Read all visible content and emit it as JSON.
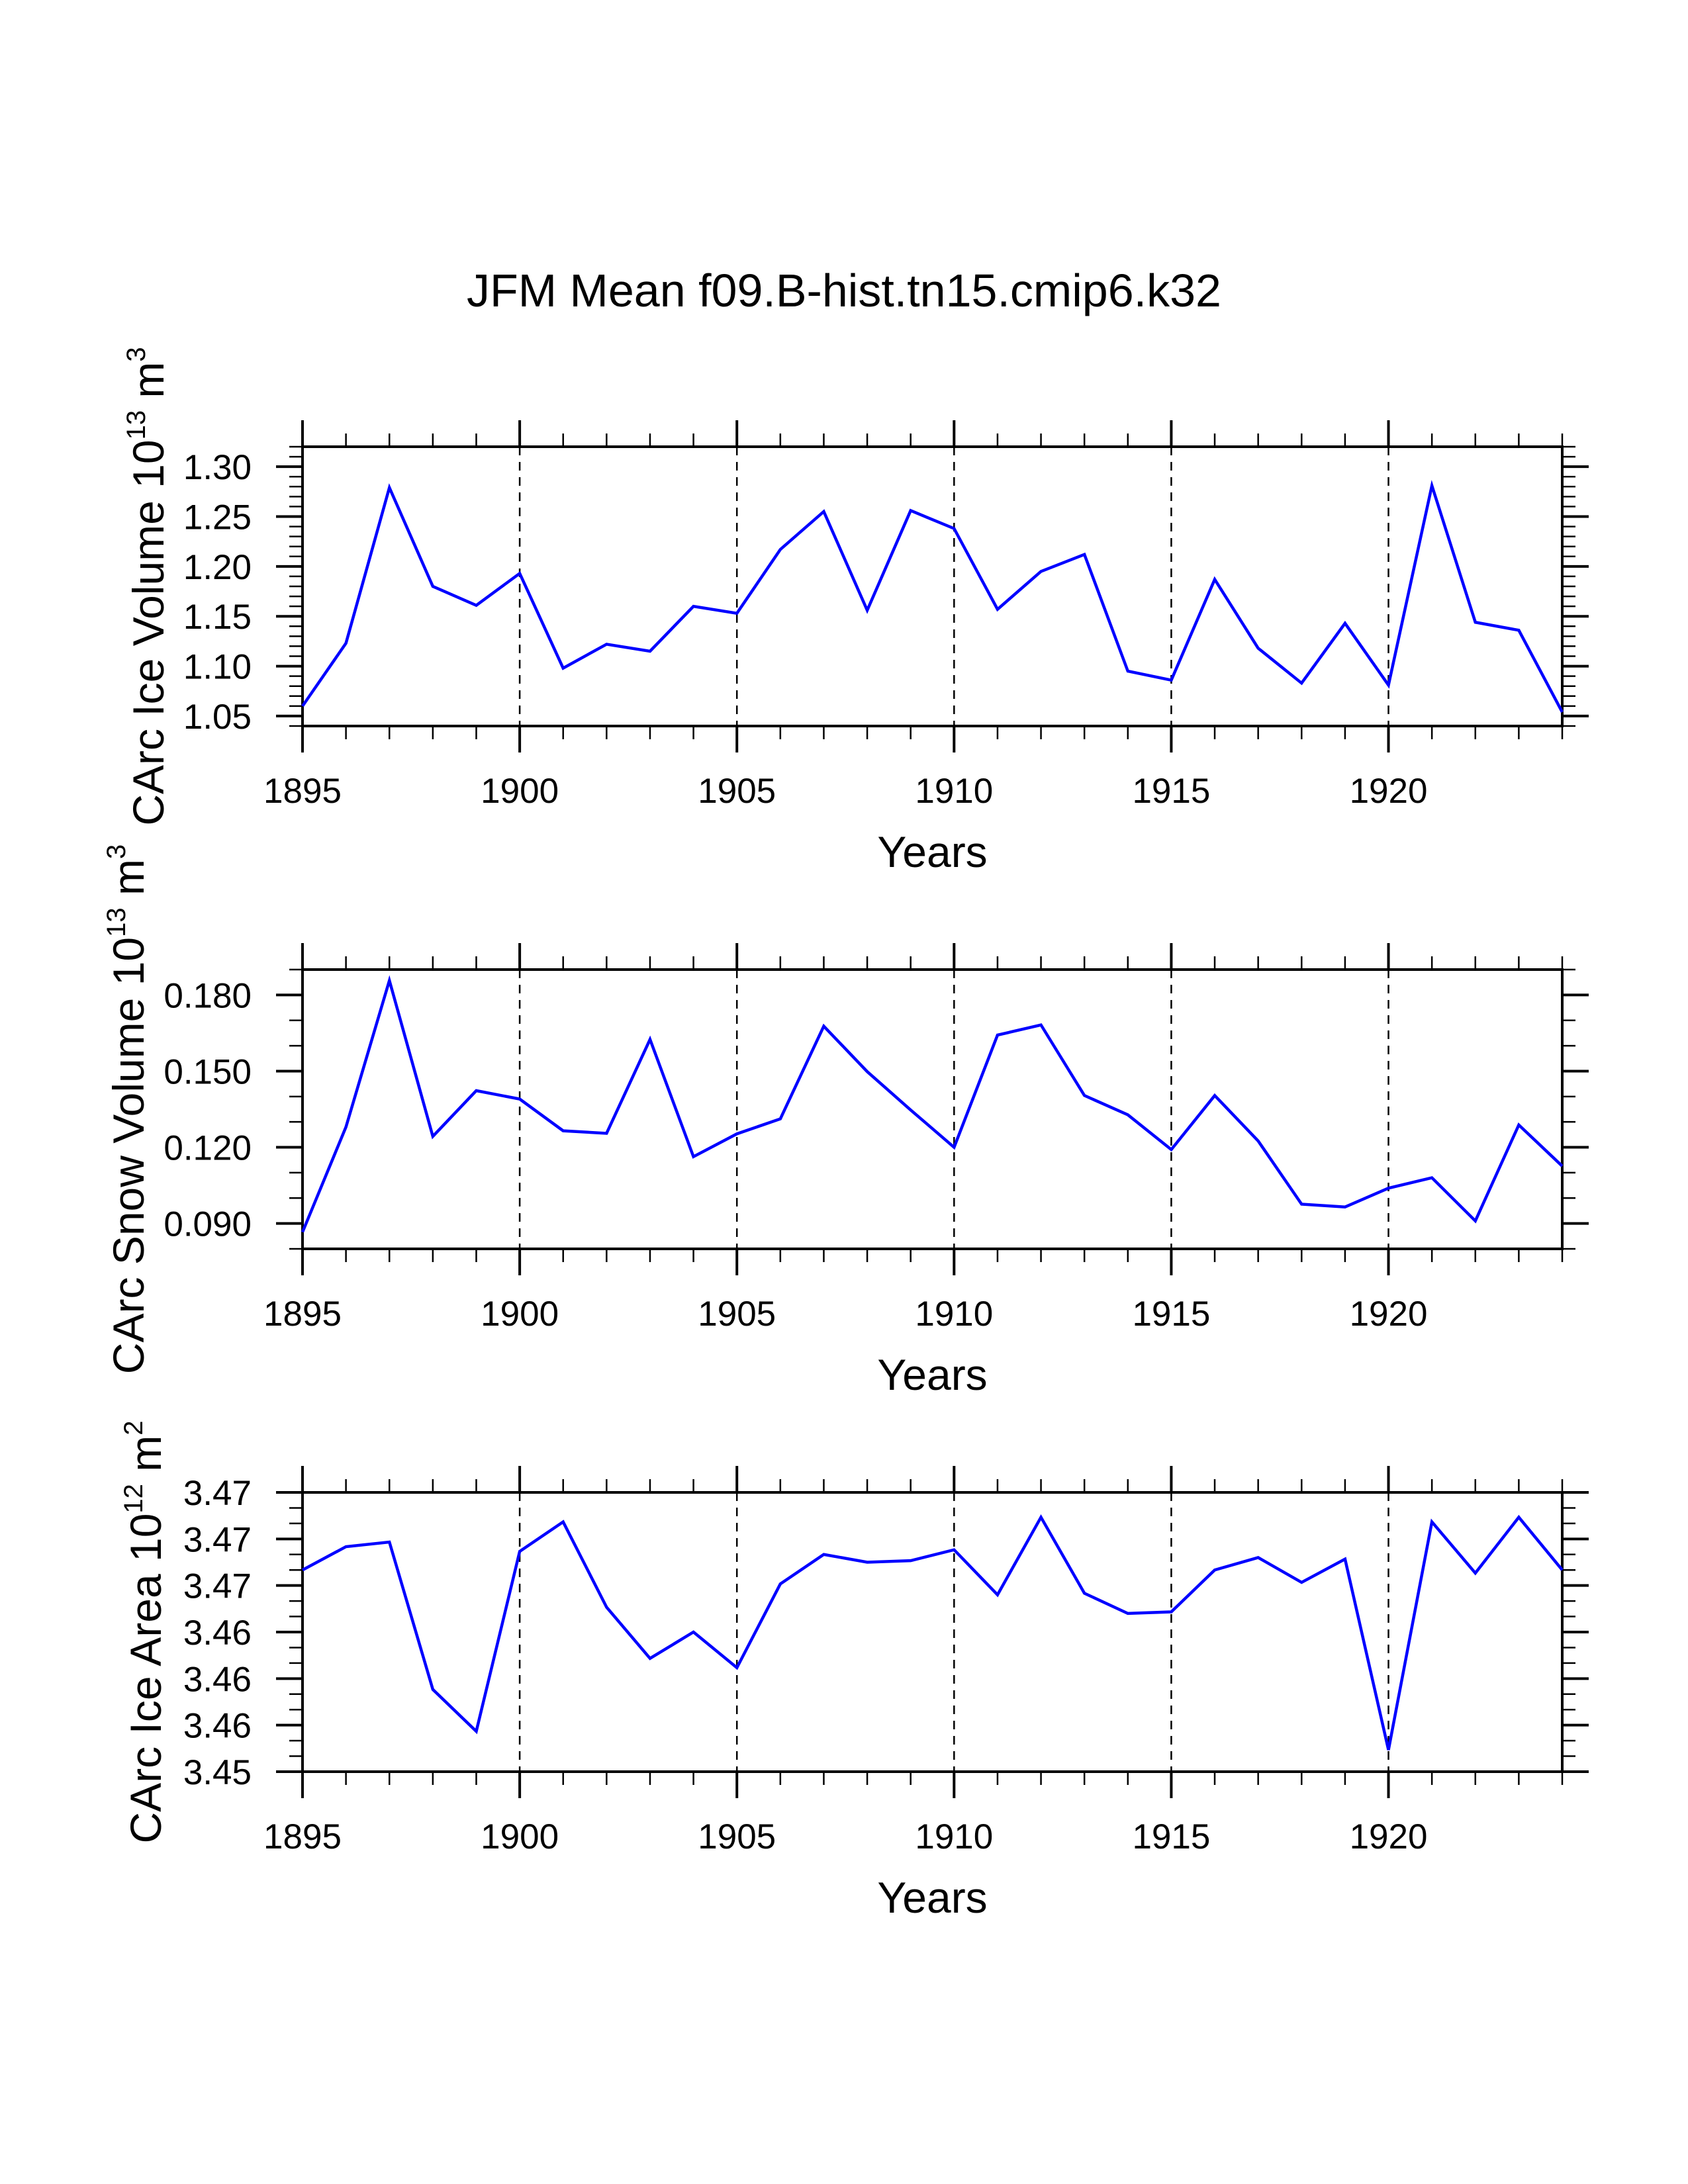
{
  "figure": {
    "title": "JFM Mean f09.B-hist.tn15.cmip6.k32"
  },
  "colors": {
    "line": "#0000FF",
    "axes": "#000000",
    "grid": "#000000",
    "background": "#FFFFFF"
  },
  "chart_data": [
    {
      "type": "line",
      "title": "",
      "xlabel": "Years",
      "ylabel": "CArc Ice Volume 10^13 m^3",
      "ylabel_parts": {
        "text": "CArc Ice Volume 10",
        "exp": "13",
        "unit": " m",
        "unit_exp": "3"
      },
      "xlim": [
        1895,
        1924
      ],
      "ylim": [
        1.04,
        1.32
      ],
      "x_major_ticks": [
        1895,
        1900,
        1905,
        1910,
        1915,
        1920
      ],
      "x_tick_labels": [
        "1895",
        "1900",
        "1905",
        "1910",
        "1915",
        "1920"
      ],
      "x_minor_step": 1,
      "y_major_ticks": [
        1.05,
        1.1,
        1.15,
        1.2,
        1.25,
        1.3
      ],
      "y_tick_labels": [
        "1.05",
        "1.10",
        "1.15",
        "1.20",
        "1.25",
        "1.30"
      ],
      "y_minor_step": 0.01,
      "grid": "x-major dashed",
      "series": [
        {
          "name": "CArc Ice Volume",
          "x": [
            1895,
            1896,
            1897,
            1898,
            1899,
            1900,
            1901,
            1902,
            1903,
            1904,
            1905,
            1906,
            1907,
            1908,
            1909,
            1910,
            1911,
            1912,
            1913,
            1914,
            1915,
            1916,
            1917,
            1918,
            1919,
            1920,
            1921,
            1922,
            1923,
            1924
          ],
          "values": [
            1.06,
            1.123,
            1.279,
            1.18,
            1.161,
            1.193,
            1.098,
            1.122,
            1.115,
            1.16,
            1.153,
            1.217,
            1.255,
            1.156,
            1.256,
            1.238,
            1.157,
            1.195,
            1.212,
            1.095,
            1.086,
            1.187,
            1.118,
            1.083,
            1.143,
            1.081,
            1.281,
            1.144,
            1.136,
            1.054
          ]
        }
      ]
    },
    {
      "type": "line",
      "title": "",
      "xlabel": "Years",
      "ylabel": "CArc Snow Volume 10^13 m^3",
      "ylabel_parts": {
        "text": "CArc Snow Volume 10",
        "exp": "13",
        "unit": " m",
        "unit_exp": "3"
      },
      "xlim": [
        1895,
        1924
      ],
      "ylim": [
        0.08,
        0.19
      ],
      "x_major_ticks": [
        1895,
        1900,
        1905,
        1910,
        1915,
        1920
      ],
      "x_tick_labels": [
        "1895",
        "1900",
        "1905",
        "1910",
        "1915",
        "1920"
      ],
      "x_minor_step": 1,
      "y_major_ticks": [
        0.09,
        0.12,
        0.15,
        0.18
      ],
      "y_tick_labels": [
        "0.090",
        "0.120",
        "0.150",
        "0.180"
      ],
      "y_minor_step": 0.01,
      "grid": "x-major dashed",
      "series": [
        {
          "name": "CArc Snow Volume",
          "x": [
            1895,
            1896,
            1897,
            1898,
            1899,
            1900,
            1901,
            1902,
            1903,
            1904,
            1905,
            1906,
            1907,
            1908,
            1909,
            1910,
            1911,
            1912,
            1913,
            1914,
            1915,
            1916,
            1917,
            1918,
            1919,
            1920,
            1921,
            1922,
            1923,
            1924
          ],
          "values": [
            0.0866,
            0.128,
            0.1857,
            0.1243,
            0.1423,
            0.139,
            0.1265,
            0.1255,
            0.1625,
            0.1163,
            0.1253,
            0.1312,
            0.1677,
            0.1498,
            0.1347,
            0.12,
            0.1642,
            0.1682,
            0.1404,
            0.1328,
            0.1191,
            0.1404,
            0.1225,
            0.0976,
            0.0965,
            0.1039,
            0.108,
            0.091,
            0.1288,
            0.1126
          ]
        }
      ]
    },
    {
      "type": "line",
      "title": "",
      "xlabel": "Years",
      "ylabel": "CArc Ice Area 10^12 m^2",
      "ylabel_parts": {
        "text": "CArc Ice Area 10",
        "exp": "12",
        "unit": " m",
        "unit_exp": "2"
      },
      "xlim": [
        1895,
        1924
      ],
      "ylim": [
        3.454,
        3.472
      ],
      "x_major_ticks": [
        1895,
        1900,
        1905,
        1910,
        1915,
        1920
      ],
      "x_tick_labels": [
        "1895",
        "1900",
        "1905",
        "1910",
        "1915",
        "1920"
      ],
      "x_minor_step": 1,
      "y_major_ticks": [
        3.454,
        3.457,
        3.46,
        3.463,
        3.466,
        3.469,
        3.472
      ],
      "y_tick_labels": [
        "3.45",
        "3.46",
        "3.46",
        "3.46",
        "3.47",
        "3.47",
        "3.47"
      ],
      "y_minor_step": 0.001,
      "grid": "x-major dashed",
      "series": [
        {
          "name": "CArc Ice Area",
          "x": [
            1895,
            1896,
            1897,
            1898,
            1899,
            1900,
            1901,
            1902,
            1903,
            1904,
            1905,
            1906,
            1907,
            1908,
            1909,
            1910,
            1911,
            1912,
            1913,
            1914,
            1915,
            1916,
            1917,
            1918,
            1919,
            1920,
            1921,
            1922,
            1923,
            1924
          ],
          "values": [
            3.467,
            3.4685,
            3.4688,
            3.4593,
            3.4566,
            3.4682,
            3.4701,
            3.4646,
            3.4613,
            3.463,
            3.4607,
            3.4661,
            3.468,
            3.4675,
            3.4676,
            3.4683,
            3.4654,
            3.4704,
            3.4655,
            3.4642,
            3.4643,
            3.467,
            3.4678,
            3.4662,
            3.4677,
            3.4554,
            3.4701,
            3.4668,
            3.4704,
            3.467
          ]
        }
      ]
    }
  ]
}
